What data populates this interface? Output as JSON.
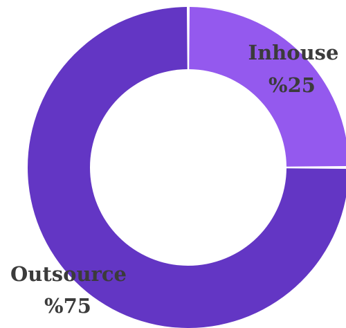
{
  "chart_data": {
    "type": "pie",
    "style": "donut",
    "slices": [
      {
        "label": "Inhouse",
        "value_label": "%25",
        "value": 25,
        "color": "#9459ee"
      },
      {
        "label": "Outsource",
        "value_label": "%75",
        "value": 75,
        "color": "#6336c4"
      }
    ],
    "title": "",
    "legend": "none"
  }
}
